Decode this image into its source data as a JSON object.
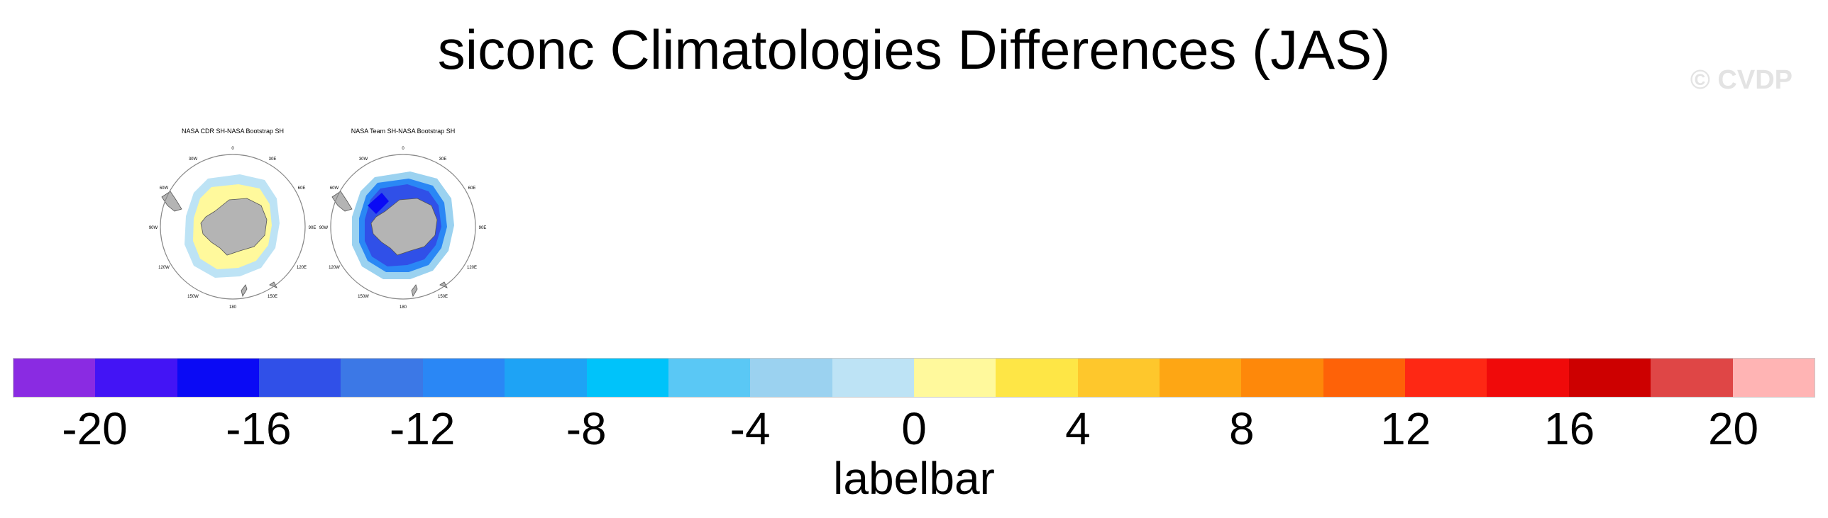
{
  "title": "siconc Climatologies Differences (JAS)",
  "watermark": "© CVDP",
  "panels": [
    {
      "title": "NASA CDR SH-NASA Bootstrap SH",
      "lon_labels": [
        "0",
        "30E",
        "60E",
        "90E",
        "120E",
        "150E",
        "180",
        "150W",
        "120W",
        "90W",
        "60W",
        "30W"
      ],
      "pattern": "positive"
    },
    {
      "title": "NASA Team SH-NASA Bootstrap SH",
      "lon_labels": [
        "0",
        "30E",
        "60E",
        "90E",
        "120E",
        "150E",
        "180",
        "150W",
        "120W",
        "90W",
        "60W",
        "30W"
      ],
      "pattern": "negative"
    }
  ],
  "labelbar": {
    "title": "labelbar",
    "colors": [
      "#8a2be2",
      "#4314f5",
      "#0a0af5",
      "#3050e8",
      "#3c78e6",
      "#2a87f5",
      "#1ea3f5",
      "#00c3fa",
      "#5ac8f5",
      "#9bd2f0",
      "#bde3f5",
      "#fff99c",
      "#fee646",
      "#fec72c",
      "#fea614",
      "#fe880a",
      "#fe6208",
      "#fe2814",
      "#f00a0a",
      "#cd0000",
      "#df4646",
      "#ffb4b4"
    ],
    "tick_labels": [
      "-20",
      "-16",
      "-12",
      "-8",
      "-4",
      "0",
      "4",
      "8",
      "12",
      "16",
      "20"
    ],
    "tick_positions": [
      1,
      3,
      5,
      7,
      9,
      11,
      13,
      15,
      17,
      19,
      21
    ]
  },
  "colors": {
    "land": "#b4b4b4",
    "coast": "#555555",
    "frame": "#888888"
  }
}
